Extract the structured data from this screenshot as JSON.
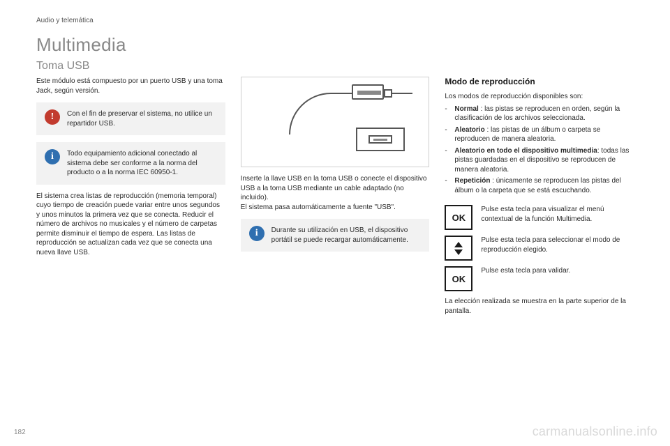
{
  "header": {
    "section": "Audio y telemática"
  },
  "title": "Multimedia",
  "subtitle": "Toma USB",
  "left": {
    "intro": "Este módulo está compuesto por un puerto USB y una toma Jack, según versión.",
    "warning": {
      "icon": "!",
      "color": "#c23b2e",
      "text": "Con el fin de preservar el sistema, no utilice un repartidor USB."
    },
    "info1": {
      "icon": "i",
      "color": "#2f6fb0",
      "text": "Todo equipamiento adicional conectado al sistema debe ser conforme a la norma del producto o a la norma IEC 60950-1."
    },
    "para2": "El sistema crea listas de reproducción (memoria temporal) cuyo tiempo de creación puede variar entre unos segundos y unos minutos la primera vez que se conecta. Reducir el número de archivos no musicales y el número de carpetas permite disminuir el tiempo de espera. Las listas de reproducción se actualizan cada vez que se conecta una nueva llave USB."
  },
  "mid": {
    "caption": "Inserte la llave USB en la toma USB o conecte el dispositivo USB a la toma USB mediante un cable adaptado (no incluido).\nEl sistema pasa automáticamente a fuente \"USB\".",
    "info2": {
      "icon": "i",
      "color": "#2f6fb0",
      "text": "Durante su utilización en USB, el dispositivo portátil se puede recargar automáticamente."
    }
  },
  "right": {
    "heading": "Modo de reproducción",
    "lead": "Los modos de reproducción disponibles son:",
    "modes": [
      {
        "name": "Normal",
        "desc": " : las pistas se reproducen en orden, según la clasificación de los archivos seleccionada."
      },
      {
        "name": "Aleatorio",
        "desc": " : las pistas de un álbum o carpeta se reproducen de manera aleatoria."
      },
      {
        "name": "Aleatorio en todo el dispositivo multimedia",
        "desc": ": todas las pistas guardadas en el dispositivo se reproducen de manera aleatoria."
      },
      {
        "name": "Repetición",
        "desc": " : únicamente se reproducen las pistas del álbum o la carpeta que se está escuchando."
      }
    ],
    "actions": [
      {
        "type": "ok",
        "label": "OK",
        "text": "Pulse esta tecla para visualizar el menú contextual de la función Multimedia."
      },
      {
        "type": "arrows",
        "label": "",
        "text": "Pulse esta tecla para seleccionar el modo de reproducción elegido."
      },
      {
        "type": "ok",
        "label": "OK",
        "text": "Pulse esta tecla para validar."
      }
    ],
    "footer": "La elección realizada se muestra en la parte superior de la pantalla."
  },
  "footer": {
    "page": "182",
    "watermark": "carmanualsonline.info"
  },
  "style": {
    "callout_bg": "#f2f2f2",
    "figure_border": "#cfcfcf"
  }
}
